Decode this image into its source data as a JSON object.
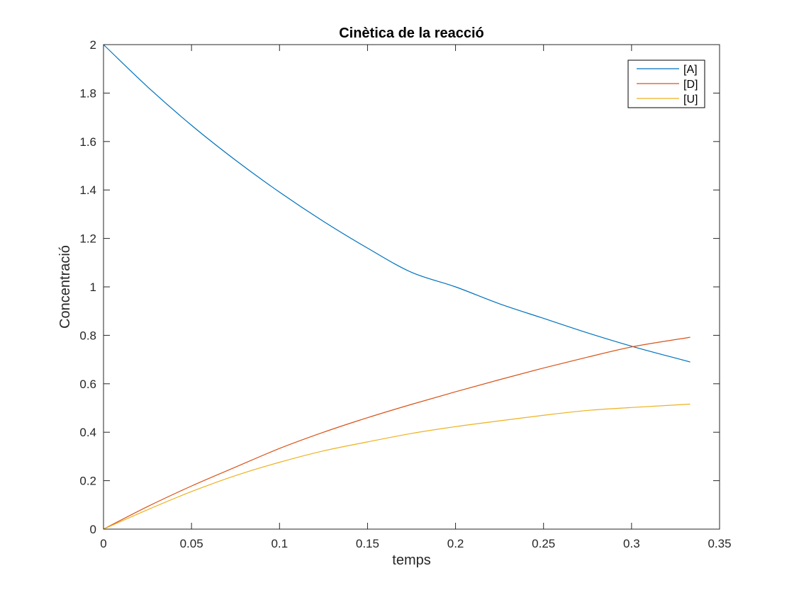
{
  "chart_data": {
    "type": "line",
    "title": "Cinètica de la reacció",
    "xlabel": "temps",
    "ylabel": "Concentració",
    "xlim": [
      0,
      0.35
    ],
    "ylim": [
      0,
      2
    ],
    "xticks": [
      0,
      0.05,
      0.1,
      0.15,
      0.2,
      0.25,
      0.3,
      0.35
    ],
    "xtick_labels": [
      "0",
      "0.05",
      "0.1",
      "0.15",
      "0.2",
      "0.25",
      "0.3",
      "0.35"
    ],
    "yticks": [
      0,
      0.2,
      0.4,
      0.6,
      0.8,
      1,
      1.2,
      1.4,
      1.6,
      1.8,
      2
    ],
    "ytick_labels": [
      "0",
      "0.2",
      "0.4",
      "0.6",
      "0.8",
      "1",
      "1.2",
      "1.4",
      "1.6",
      "1.8",
      "2"
    ],
    "grid": false,
    "legend_position": "top-right",
    "x": [
      0,
      0.025,
      0.05,
      0.075,
      0.1,
      0.125,
      0.15,
      0.175,
      0.2,
      0.225,
      0.25,
      0.275,
      0.3,
      0.3333
    ],
    "series": [
      {
        "name": "[A]",
        "color": "#0072BD",
        "values": [
          2.0,
          1.826,
          1.667,
          1.523,
          1.391,
          1.27,
          1.16,
          1.06,
          1.0,
          0.93,
          0.87,
          0.81,
          0.755,
          0.69
        ]
      },
      {
        "name": "[D]",
        "color": "#D95319",
        "values": [
          0.0,
          0.093,
          0.178,
          0.256,
          0.333,
          0.4,
          0.46,
          0.515,
          0.567,
          0.617,
          0.665,
          0.71,
          0.752,
          0.792
        ]
      },
      {
        "name": "[U]",
        "color": "#EDB120",
        "values": [
          0.0,
          0.08,
          0.155,
          0.221,
          0.276,
          0.323,
          0.36,
          0.395,
          0.423,
          0.447,
          0.47,
          0.49,
          0.502,
          0.516
        ]
      }
    ]
  }
}
